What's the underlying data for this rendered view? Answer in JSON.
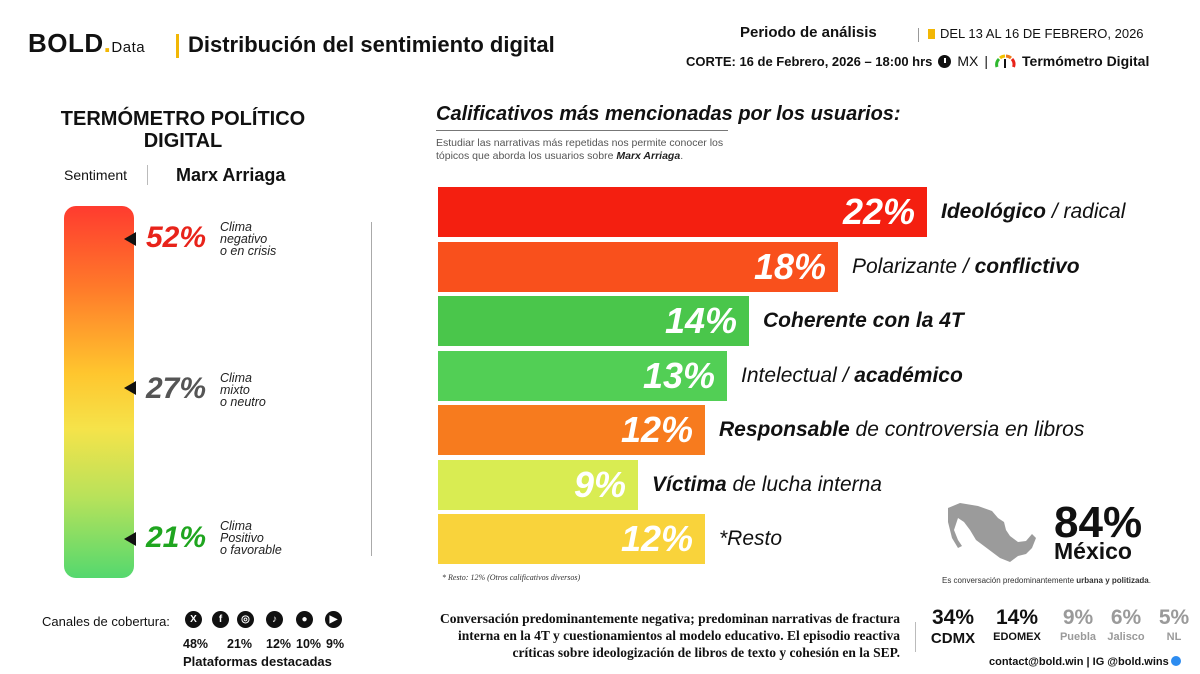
{
  "header": {
    "brand": "BOLD",
    "brand_dot": ".",
    "brand_small": "Data",
    "title": "Distribución del sentimiento digital",
    "period_label": "Periodo de análisis",
    "period_range": "DEL 13 AL 16 DE FEBRERO, 2026",
    "corte": "CORTE: 16 de Febrero, 2026  – 18:00 hrs",
    "country": "MX",
    "country_sep": "|",
    "thermo_brand": "Termómetro Digital"
  },
  "thermometer": {
    "title": "TERMÓMETRO POLÍTICO DIGITAL",
    "sentiment_label": "Sentiment",
    "name": "Marx Arriaga",
    "levels": [
      {
        "pct": "52%",
        "line1": "Clima",
        "line2": "negativo",
        "line3": "o en crisis",
        "color": "#e8231a"
      },
      {
        "pct": "27%",
        "line1": "Clima",
        "line2": "mixto",
        "line3": "o neutro",
        "color": "#555555"
      },
      {
        "pct": "21%",
        "line1": "Clima",
        "line2": "Positivo",
        "line3": "o favorable",
        "color": "#1fa51f"
      }
    ]
  },
  "chart_data": {
    "type": "bar",
    "orientation": "horizontal",
    "title": "Calificativos más mencionadas por los usuarios:",
    "subtitle_1": "Estudiar las narrativas más repetidas nos permite conocer los",
    "subtitle_2": "tópicos que aborda los usuarios sobre",
    "subtitle_name": "Marx Arriaga",
    "subtitle_end": ".",
    "categories": [
      "Ideológico / radical",
      "Polarizante / conflictivo",
      "Coherente con la 4T",
      "Intelectual / académico",
      "Responsable de controversia en libros",
      "Víctima de lucha interna",
      "*Resto"
    ],
    "values": [
      22,
      18,
      14,
      13,
      12,
      9,
      12
    ],
    "value_labels": [
      "22%",
      "18%",
      "14%",
      "13%",
      "12%",
      "9%",
      "12%"
    ],
    "label_parts": [
      [
        {
          "t": "Ideológico",
          "b": true
        },
        {
          "t": " / radical",
          "b": false
        }
      ],
      [
        {
          "t": "Polarizante / ",
          "b": false
        },
        {
          "t": "conflictivo",
          "b": true
        }
      ],
      [
        {
          "t": "Coherente con la 4T",
          "b": true
        }
      ],
      [
        {
          "t": "Intelectual / ",
          "b": false
        },
        {
          "t": "académico",
          "b": true
        }
      ],
      [
        {
          "t": "Responsable",
          "b": true
        },
        {
          "t": " de controversia en libros",
          "b": false
        }
      ],
      [
        {
          "t": "Víctima",
          "b": true
        },
        {
          "t": " de lucha interna",
          "b": false
        }
      ],
      [
        {
          "t": "*Resto",
          "b": false
        }
      ]
    ],
    "colors": [
      "#f41f10",
      "#f9501c",
      "#4ac64b",
      "#52cf55",
      "#f77b1e",
      "#d9ec52",
      "#f9d33b"
    ],
    "xlim": [
      0,
      22
    ],
    "note": "* Resto: 12% (Otros calificativos diversos)"
  },
  "mexico": {
    "pct": "84%",
    "name": "México",
    "note_start": "Es conversación predominantemente ",
    "note_bold": "urbana y politizada",
    "note_end": ".",
    "regions": [
      {
        "pct": "34%",
        "name": "CDMX",
        "color": "#111111"
      },
      {
        "pct": "14%",
        "name": "EDOMEX",
        "color": "#111111"
      },
      {
        "pct": "9%",
        "name": "Puebla",
        "color": "#9a9a9a"
      },
      {
        "pct": "6%",
        "name": "Jalisco",
        "color": "#9a9a9a"
      },
      {
        "pct": "5%",
        "name": "NL",
        "color": "#9a9a9a"
      }
    ]
  },
  "footer": {
    "canales_label": "Canales de cobertura:",
    "platforms": [
      {
        "icon": "x-icon",
        "glyph": "X",
        "pct": "48%"
      },
      {
        "icon": "facebook-icon",
        "glyph": "f",
        "pct": "21%"
      },
      {
        "icon": "instagram-icon",
        "glyph": "◎",
        "pct": ""
      },
      {
        "icon": "tiktok-icon",
        "glyph": "♪",
        "pct": "12%"
      },
      {
        "icon": "community-icon",
        "glyph": "●",
        "pct": "10%"
      },
      {
        "icon": "youtube-icon",
        "glyph": "▶",
        "pct": "9%"
      }
    ],
    "platforms_label": "Plataformas destacadas",
    "summary_1": "Conversación predominantemente negativa; predominan narrativas de fractura",
    "summary_2": "interna en la 4T y cuestionamientos al modelo educativo. El episodio reactiva",
    "summary_3": "críticas sobre ideologización de libros de texto y cohesión en la SEP.",
    "contact": "contact@bold.win | IG @bold.wins"
  }
}
